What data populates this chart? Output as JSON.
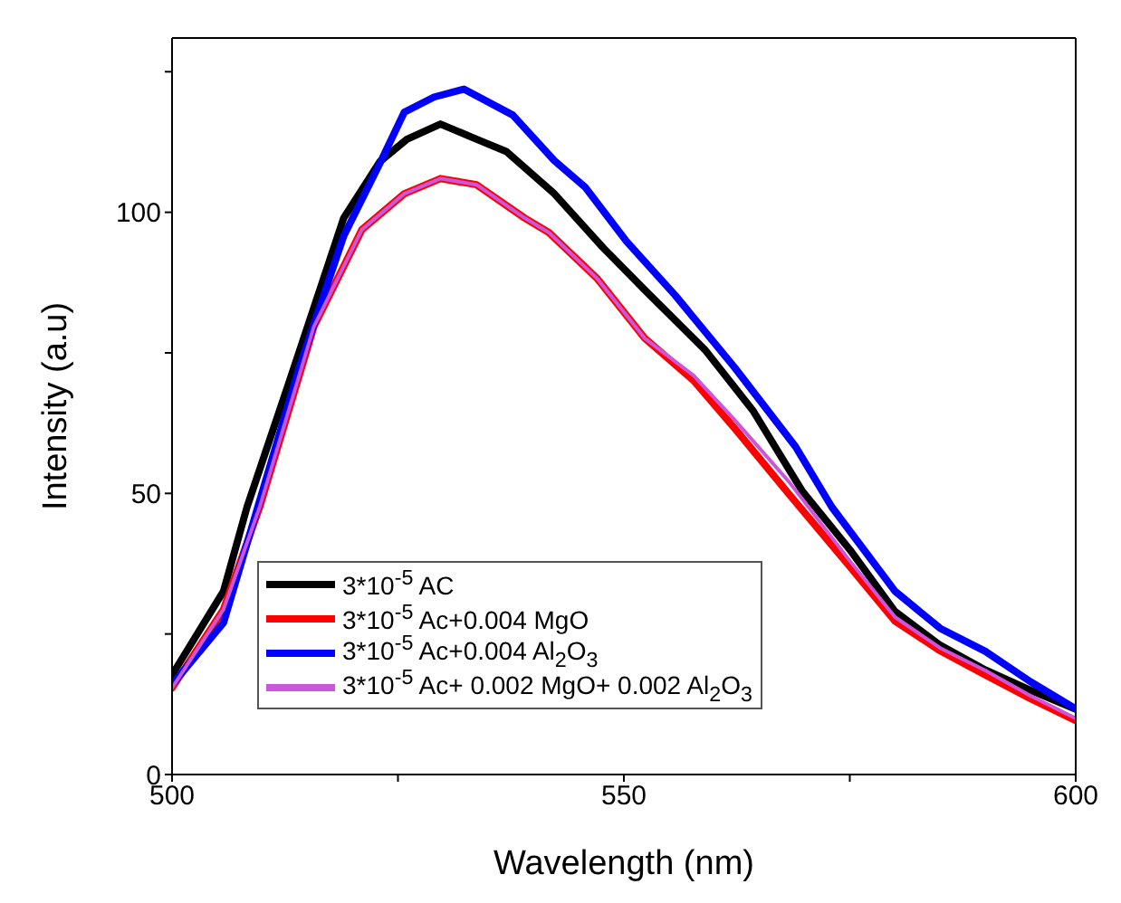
{
  "chart_data": {
    "type": "line",
    "xlabel": "Wavelength (nm)",
    "ylabel": "Intensity (a.u)",
    "xlim": [
      500,
      600
    ],
    "xticks": [
      500,
      {
        "value": 525,
        "label": null
      },
      550,
      {
        "value": 575,
        "label": null
      },
      600
    ],
    "ylim": [
      0,
      131
    ],
    "yticks": [
      0,
      {
        "value": 25,
        "label": null
      },
      50,
      {
        "value": 75,
        "label": null
      },
      100,
      {
        "value": 125,
        "label": null
      }
    ],
    "legend": "bottom left",
    "marker": "none",
    "line_style": "solid",
    "series": [
      {
        "name": "3*10$^{-5}$ AC",
        "color": "#000000",
        "x": [
          500,
          505.7,
          508.3,
          513,
          519,
          523,
          526,
          529.7,
          533.7,
          537,
          542.3,
          547.7,
          552.3,
          559,
          564.3,
          569.7,
          575,
          580,
          585,
          590,
          595,
          600
        ],
        "values": [
          17.7,
          32.6,
          47.6,
          70,
          99,
          109,
          113,
          115.7,
          113,
          110.8,
          103.3,
          93.7,
          86.2,
          75.5,
          64.7,
          50.5,
          40,
          29,
          23,
          18.6,
          15,
          11.6
        ]
      },
      {
        "name": "3*10$^{-5}$ Ac+0.004 MgO",
        "color": "#ff0000",
        "x": [
          500,
          505.7,
          509.7,
          515.7,
          521,
          525.7,
          529.7,
          533.7,
          539,
          541.7,
          547,
          552.3,
          557.7,
          562.3,
          568.3,
          575,
          580,
          585,
          590,
          595,
          600
        ],
        "values": [
          15.4,
          29.4,
          47.6,
          79.7,
          96.9,
          103.3,
          106,
          104.9,
          99,
          96.4,
          88.3,
          77.6,
          70.1,
          61.5,
          49.8,
          37,
          27.3,
          22,
          17.7,
          13.5,
          9.6
        ]
      },
      {
        "name": "3*10$^{-5}$ Ac+0.004 Al$_{2}$O$_{3}$",
        "color": "#0000ff",
        "x": [
          500,
          505.7,
          509.5,
          514,
          519,
          523,
          525.7,
          529,
          532.3,
          537.7,
          542.3,
          545.7,
          550.3,
          555.7,
          562.3,
          569,
          573,
          580,
          585,
          590,
          595,
          600
        ],
        "values": [
          16,
          27,
          47.6,
          72,
          95.8,
          108.7,
          117.8,
          120.5,
          121.9,
          117.3,
          109.2,
          104.5,
          94.8,
          85.2,
          72.3,
          58.3,
          47.6,
          32.6,
          26,
          21.9,
          16.5,
          11.7
        ]
      },
      {
        "name": "3*10$^{-5}$ Ac+ 0.002 MgO+ 0.002 Al$_{2}$O$_{3}$",
        "color": "#cc55dd",
        "x": [
          500,
          505.7,
          509.7,
          515.7,
          521,
          525.7,
          529.7,
          533.7,
          539,
          541.7,
          547,
          552.3,
          557.7,
          562.3,
          568.3,
          575,
          580,
          585,
          590,
          595,
          600
        ],
        "values": [
          15.4,
          29.4,
          47.6,
          79.7,
          96.9,
          103.3,
          106,
          104.9,
          99,
          96.4,
          88.3,
          77.6,
          71,
          63,
          52,
          38,
          28,
          22.5,
          18.5,
          14,
          10
        ]
      }
    ]
  }
}
